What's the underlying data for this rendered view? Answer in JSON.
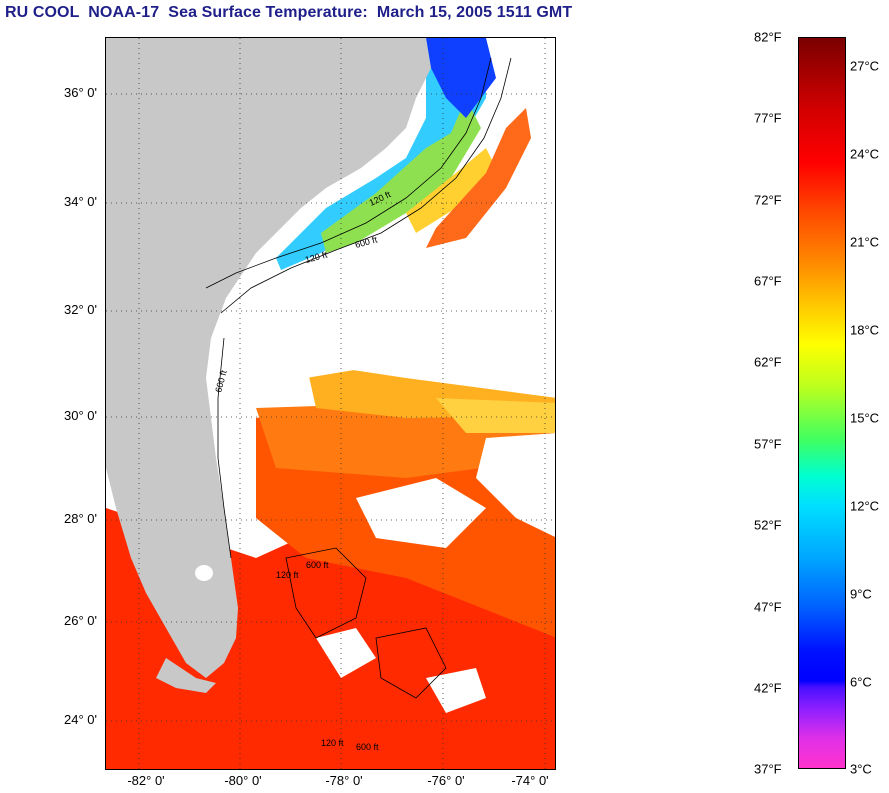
{
  "title": "RU COOL  NOAA-17  Sea Surface Temperature:  March 15, 2005 1511 GMT",
  "map": {
    "latitude_labels": [
      "36° 0'",
      "34° 0'",
      "32° 0'",
      "30° 0'",
      "28° 0'",
      "26° 0'",
      "24° 0'"
    ],
    "longitude_labels": [
      "-82° 0'",
      "-80° 0'",
      "-78° 0'",
      "-76° 0'",
      "-74° 0'"
    ],
    "land_color": "#c8c8c8",
    "isobath_labels": [
      "120 ft",
      "600 ft",
      "120 ft",
      "600 ft",
      "120 ft",
      "600 ft",
      "120 ft",
      "600 ft"
    ]
  },
  "colorbar": {
    "fahrenheit_labels": [
      "82°F",
      "77°F",
      "72°F",
      "67°F",
      "62°F",
      "57°F",
      "52°F",
      "47°F",
      "42°F",
      "37°F"
    ],
    "celsius_labels": [
      "27°C",
      "24°C",
      "21°C",
      "18°C",
      "15°C",
      "12°C",
      "9°C",
      "6°C",
      "3°C"
    ],
    "colors": [
      "#8b0000",
      "#ff0000",
      "#ff8c00",
      "#ffff00",
      "#7fff00",
      "#00ffff",
      "#0080ff",
      "#0000ff",
      "#8000ff",
      "#ff33cc"
    ]
  }
}
